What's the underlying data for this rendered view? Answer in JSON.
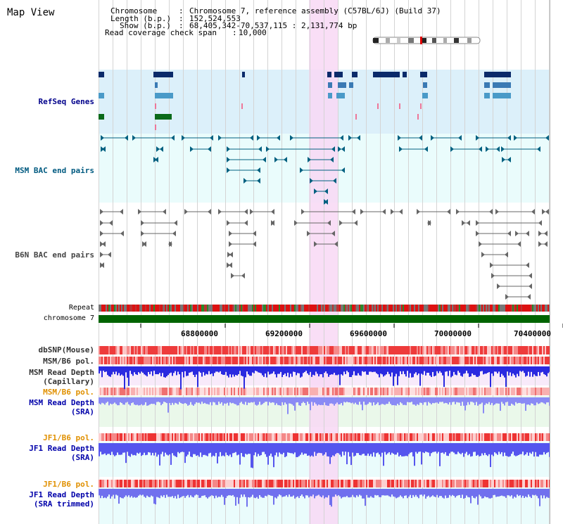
{
  "view_title": "Map View",
  "header": {
    "chromosome_label": "Chromosome",
    "chromosome_value": "Chromosome 7, reference assembly (C57BL/6J) (Build 37)",
    "length_label": "Length (b.p.)",
    "length_value": "152,524,553",
    "show_label": "Show (b.p.)",
    "show_value": "68,405,342-70,537,115 : 2,131,774 bp",
    "coverage_label": "Read coverage check span",
    "coverage_value": "10,000"
  },
  "tracks": {
    "refseq": "RefSeq Genes",
    "msm_bac": "MSM BAC end pairs",
    "b6n_bac": "B6N BAC end pairs",
    "repeat": "Repeat",
    "chromosome": "chromosome 7",
    "dbsnp": "dbSNP(Mouse)",
    "msm_b6_pol_1": "MSM/B6 pol.",
    "msm_cap_1": "MSM Read Depth",
    "msm_cap_2": "(Capillary)",
    "msm_b6_pol_2": "MSM/B6 pol.",
    "msm_sra_1": "MSM Read Depth",
    "msm_sra_2": "(SRA)",
    "jf1_pol_1": "JF1/B6 pol.",
    "jf1_sra_1": "JF1 Read Depth",
    "jf1_sra_2": "(SRA)",
    "jf1_pol_2": "JF1/B6 pol.",
    "jf1_trim_1": "JF1 Read Depth",
    "jf1_trim_2": "(SRA trimmed)"
  },
  "axis_ticks": [
    "68800000",
    "69200000",
    "69600000",
    "70000000",
    "70400000"
  ],
  "colors": {
    "refseq_bg": "#dcf0fa",
    "bac_bg": "#eafcfc",
    "highlight": "#f8d8f4",
    "msm_label": "#005a80",
    "refseq_label": "#00008b",
    "pol_label": "#e09000",
    "depth_label": "#0000aa",
    "depth_bar": "#5555ee",
    "chromosome_bar": "#006400"
  }
}
